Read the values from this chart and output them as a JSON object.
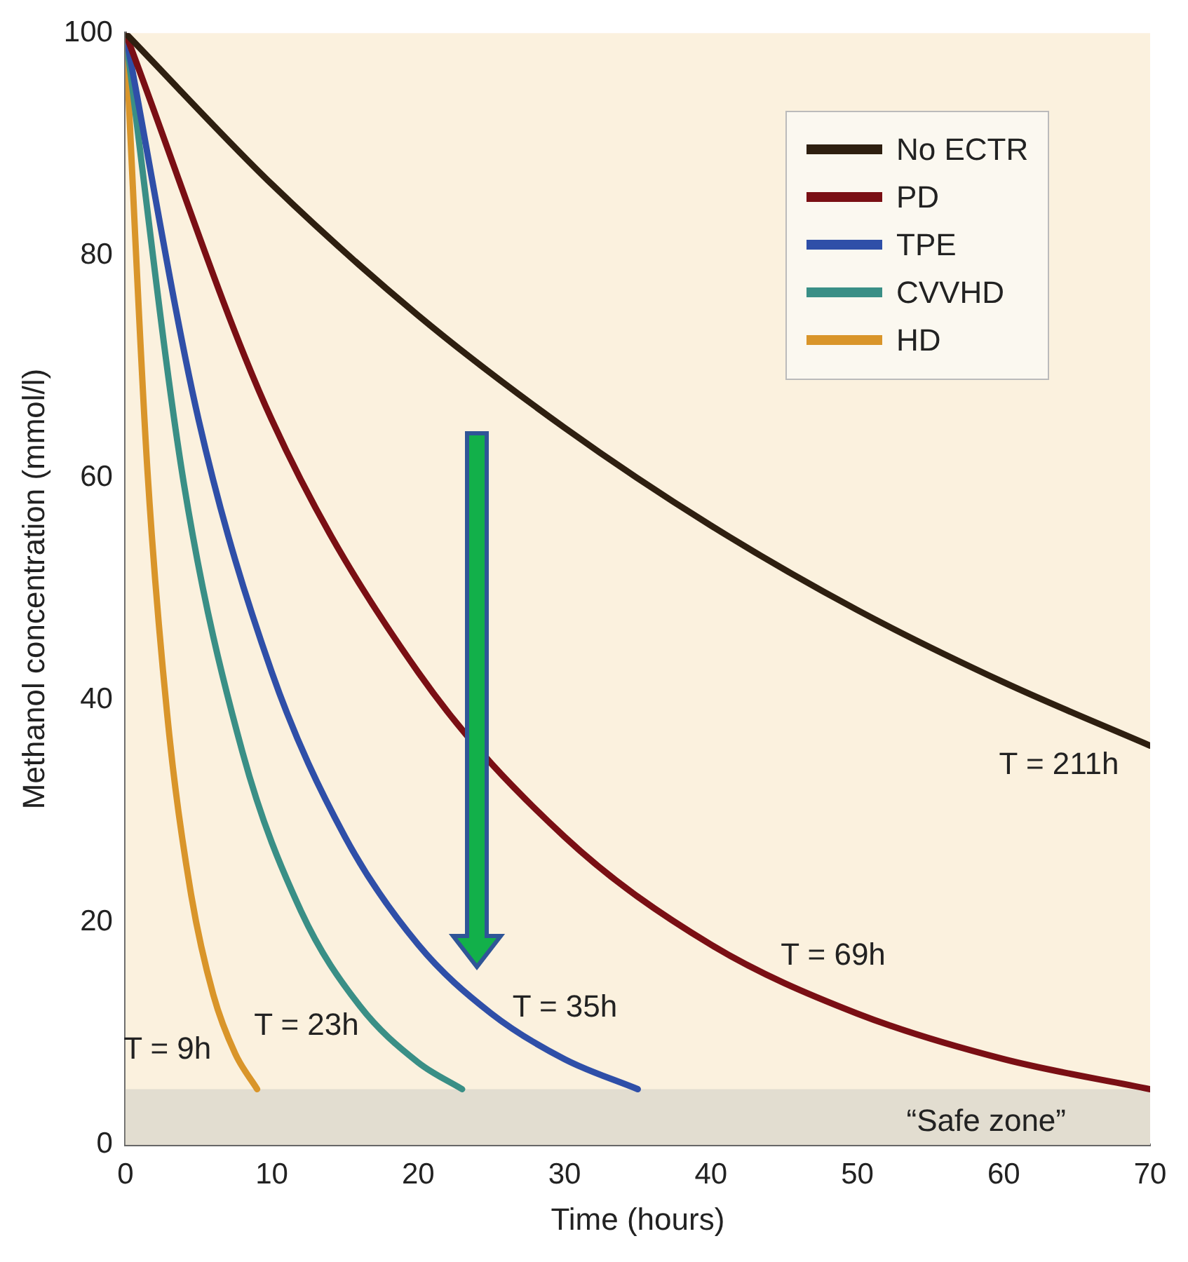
{
  "chart_data": {
    "type": "line",
    "xlabel": "Time (hours)",
    "ylabel": "Methanol concentration (mmol/l)",
    "xlim": [
      0,
      70
    ],
    "xticks": [
      0,
      10,
      20,
      30,
      40,
      50,
      60,
      70
    ],
    "ylim": [
      0,
      100
    ],
    "yticks": [
      0,
      20,
      40,
      60,
      80,
      100
    ],
    "grid": false,
    "legend": "top right",
    "marker": "none",
    "line_style": "solid",
    "series": [
      {
        "name": "No ECTR",
        "color": "#2e1f10",
        "x": [
          0,
          10,
          20,
          30,
          40,
          50,
          60,
          70
        ],
        "values": [
          100,
          86.4,
          74.6,
          64.5,
          55.7,
          48.1,
          41.6,
          35.9
        ]
      },
      {
        "name": "PD",
        "color": "#7a0f14",
        "x": [
          0,
          10,
          20,
          30,
          40,
          50,
          60,
          70
        ],
        "values": [
          100,
          65.2,
          42.5,
          27.7,
          18.0,
          11.8,
          7.7,
          5
        ]
      },
      {
        "name": "TPE",
        "color": "#2f4fa8",
        "x": [
          0,
          5,
          10,
          15,
          20,
          25,
          30,
          35
        ],
        "values": [
          100,
          65.2,
          42.5,
          27.7,
          18.0,
          11.8,
          7.7,
          5
        ]
      },
      {
        "name": "CVVHD",
        "color": "#3a8f86",
        "x": [
          0,
          4,
          8,
          12,
          16,
          20,
          23
        ],
        "values": [
          100,
          59.4,
          35.3,
          21.0,
          12.5,
          7.4,
          5
        ]
      },
      {
        "name": "HD",
        "color": "#d9952a",
        "x": [
          0,
          1.5,
          3,
          4.5,
          6,
          7.5,
          9
        ],
        "values": [
          100,
          60.7,
          36.8,
          22.4,
          13.5,
          8.2,
          5
        ]
      }
    ],
    "bands": [
      {
        "axis": "y",
        "from": 0,
        "to": 5,
        "label": "“Safe zone”",
        "color": "#e2ddd0"
      }
    ],
    "annotations": [
      "T = 9h",
      "T = 23h",
      "T = 35h",
      "T = 69h",
      "T = 211h"
    ]
  }
}
